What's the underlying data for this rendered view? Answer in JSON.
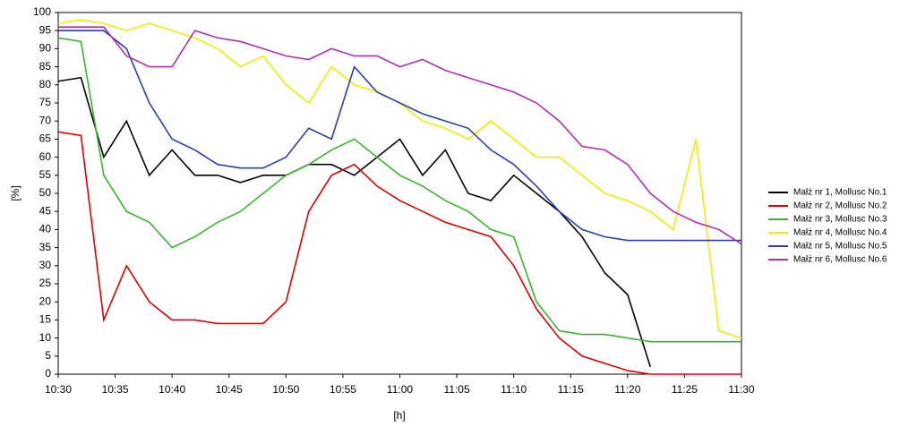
{
  "chart_data": {
    "type": "line",
    "ylabel": "[%]",
    "xlabel": "[h]",
    "x": [
      630,
      632,
      634,
      636,
      638,
      640,
      642,
      644,
      646,
      648,
      650,
      652,
      654,
      656,
      658,
      660,
      662,
      664,
      666,
      668,
      670,
      672,
      674,
      676,
      678,
      680,
      682,
      684,
      686,
      688,
      690
    ],
    "series": [
      {
        "name": "Małż nr 1, Mollusc No.1",
        "color": "#000000",
        "values": [
          81,
          82,
          60,
          70,
          55,
          62,
          55,
          55,
          53,
          55,
          55,
          58,
          58,
          55,
          60,
          65,
          55,
          62,
          50,
          48,
          55,
          50,
          45,
          38,
          28,
          22,
          2,
          null,
          null,
          null,
          null
        ]
      },
      {
        "name": "Małż nr 2, Mollusc No.2",
        "color": "#e00000",
        "values": [
          67,
          66,
          15,
          30,
          20,
          15,
          15,
          14,
          14,
          14,
          20,
          45,
          55,
          58,
          52,
          48,
          45,
          42,
          40,
          38,
          30,
          18,
          10,
          5,
          3,
          1,
          0,
          0,
          0,
          0,
          0
        ]
      },
      {
        "name": "Małż nr 3, Mollusc No.3",
        "color": "#3cb431",
        "values": [
          93,
          92,
          55,
          45,
          42,
          35,
          38,
          42,
          45,
          50,
          55,
          58,
          62,
          65,
          60,
          55,
          52,
          48,
          45,
          40,
          38,
          20,
          12,
          11,
          11,
          10,
          9,
          9,
          9,
          9,
          9
        ]
      },
      {
        "name": "Małż nr 4, Mollusc No.4",
        "color": "#eeee00",
        "values": [
          97,
          98,
          97,
          95,
          97,
          95,
          93,
          90,
          85,
          88,
          80,
          75,
          85,
          80,
          78,
          75,
          70,
          68,
          65,
          70,
          65,
          60,
          60,
          55,
          50,
          48,
          45,
          40,
          65,
          12,
          10
        ]
      },
      {
        "name": "Małż nr 5, Mollusc No.5",
        "color": "#2a3fb0",
        "values": [
          95,
          95,
          95,
          90,
          75,
          65,
          62,
          58,
          57,
          57,
          60,
          68,
          65,
          85,
          78,
          75,
          72,
          70,
          68,
          62,
          58,
          52,
          45,
          40,
          38,
          37,
          37,
          37,
          37,
          37,
          37
        ]
      },
      {
        "name": "Małż nr 6, Mollusc No.6",
        "color": "#b030b0",
        "values": [
          96,
          96,
          96,
          88,
          85,
          85,
          95,
          93,
          92,
          90,
          88,
          87,
          90,
          88,
          88,
          85,
          87,
          84,
          82,
          80,
          78,
          75,
          70,
          63,
          62,
          58,
          50,
          45,
          42,
          40,
          36
        ]
      }
    ],
    "xlim": [
      630,
      690
    ],
    "xticks": [
      {
        "value": 630,
        "label": "10:30"
      },
      {
        "value": 635,
        "label": "10:35"
      },
      {
        "value": 640,
        "label": "10:40"
      },
      {
        "value": 645,
        "label": "10:45"
      },
      {
        "value": 650,
        "label": "10:50"
      },
      {
        "value": 655,
        "label": "10:55"
      },
      {
        "value": 660,
        "label": "11:00"
      },
      {
        "value": 665,
        "label": "11:05"
      },
      {
        "value": 670,
        "label": "11:10"
      },
      {
        "value": 675,
        "label": "11:15"
      },
      {
        "value": 680,
        "label": "11:20"
      },
      {
        "value": 685,
        "label": "11:25"
      },
      {
        "value": 690,
        "label": "11:30"
      }
    ],
    "ylim": [
      0,
      100
    ],
    "yticks": [
      0,
      5,
      10,
      15,
      20,
      25,
      30,
      35,
      40,
      45,
      50,
      55,
      60,
      65,
      70,
      75,
      80,
      85,
      90,
      95,
      100
    ],
    "grid": false,
    "legend": "right"
  }
}
